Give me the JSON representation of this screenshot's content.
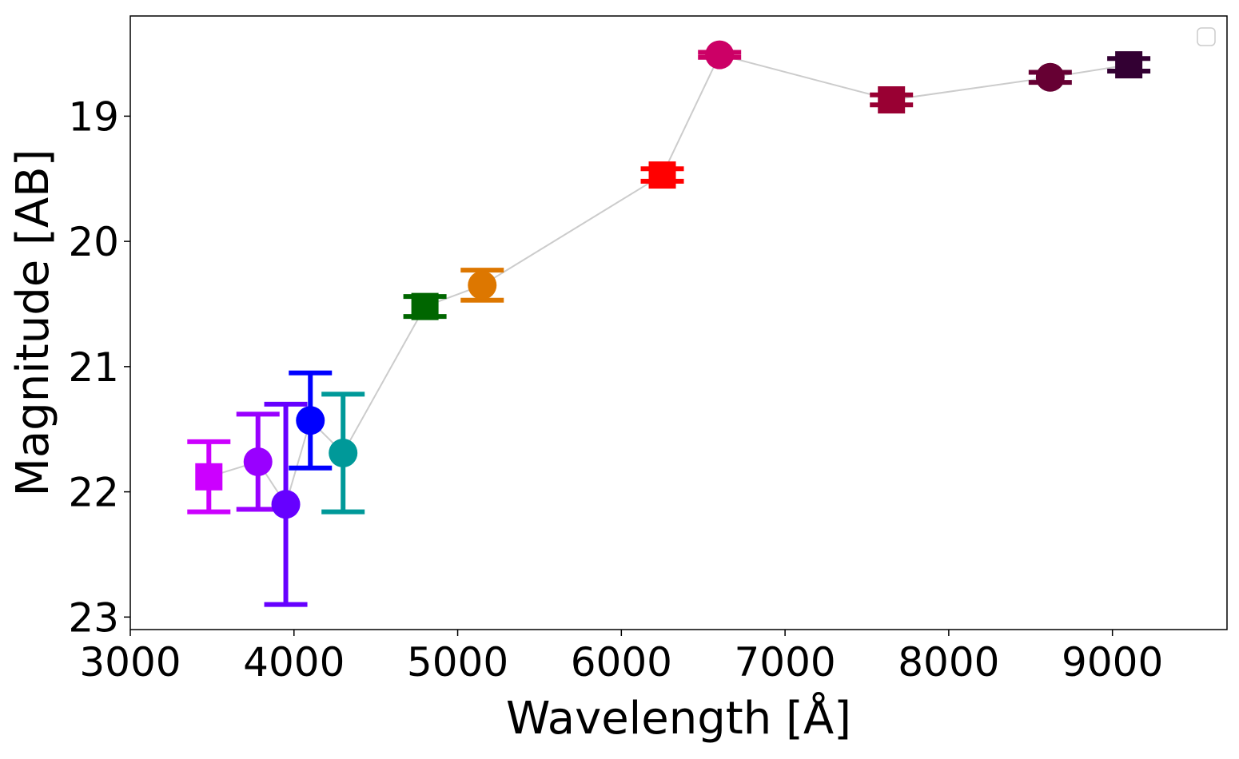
{
  "chart_data": {
    "type": "scatter",
    "title": "",
    "xlabel": "Wavelength [Å]",
    "ylabel": "Magnitude [AB]",
    "xlim": [
      3000,
      9700
    ],
    "ylim": [
      23.1,
      18.2
    ],
    "y_inverted": true,
    "x_ticks": [
      3000,
      4000,
      5000,
      6000,
      7000,
      8000,
      9000
    ],
    "y_ticks": [
      19,
      20,
      21,
      22,
      23
    ],
    "grid": false,
    "legend": {
      "placement": "top-right",
      "entries": []
    },
    "connector_color": "#cccccc",
    "points": [
      {
        "x": 3480,
        "y": 21.88,
        "err_low": 0.28,
        "err_high": 0.28,
        "marker": "square",
        "color": "#cc00ff"
      },
      {
        "x": 3780,
        "y": 21.76,
        "err_low": 0.38,
        "err_high": 0.38,
        "marker": "circle",
        "color": "#9900ff"
      },
      {
        "x": 3950,
        "y": 22.1,
        "err_low": 0.8,
        "err_high": 0.8,
        "marker": "circle",
        "color": "#6600ff"
      },
      {
        "x": 4100,
        "y": 21.43,
        "err_low": 0.38,
        "err_high": 0.38,
        "marker": "circle",
        "color": "#0000ff"
      },
      {
        "x": 4300,
        "y": 21.69,
        "err_low": 0.47,
        "err_high": 0.47,
        "marker": "circle",
        "color": "#009999"
      },
      {
        "x": 4800,
        "y": 20.52,
        "err_low": 0.08,
        "err_high": 0.08,
        "marker": "square",
        "color": "#006600"
      },
      {
        "x": 5150,
        "y": 20.35,
        "err_low": 0.12,
        "err_high": 0.12,
        "marker": "circle",
        "color": "#dd7700"
      },
      {
        "x": 6250,
        "y": 19.47,
        "err_low": 0.05,
        "err_high": 0.05,
        "marker": "square",
        "color": "#ff0000"
      },
      {
        "x": 6600,
        "y": 18.51,
        "err_low": 0.02,
        "err_high": 0.02,
        "marker": "circle",
        "color": "#cc0066"
      },
      {
        "x": 7650,
        "y": 18.87,
        "err_low": 0.04,
        "err_high": 0.04,
        "marker": "square",
        "color": "#990033"
      },
      {
        "x": 8620,
        "y": 18.69,
        "err_low": 0.04,
        "err_high": 0.04,
        "marker": "circle",
        "color": "#660033"
      },
      {
        "x": 9100,
        "y": 18.59,
        "err_low": 0.05,
        "err_high": 0.05,
        "marker": "square",
        "color": "#330033"
      }
    ]
  }
}
